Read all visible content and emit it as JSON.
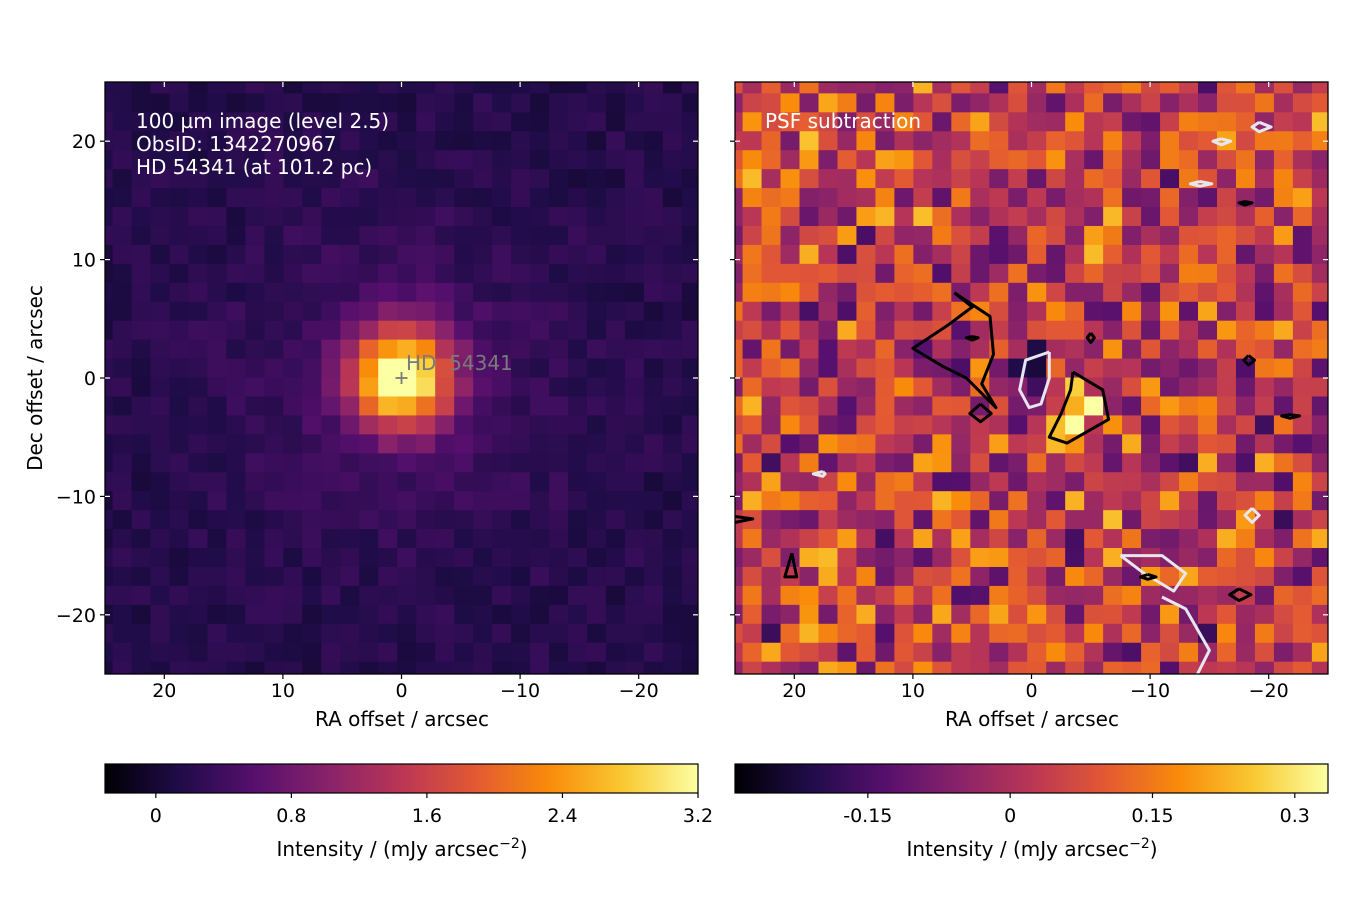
{
  "chart_data": [
    {
      "type": "heatmap",
      "panel": "left",
      "annotations": [
        "100 µm image (level 2.5)",
        "ObsID: 1342270967",
        "HD 54341 (at 101.2 pc)"
      ],
      "source_marker_label": "HD  54341",
      "source_position": [
        0,
        0
      ],
      "xlabel": "RA offset / arcsec",
      "ylabel": "Dec offset / arcsec",
      "xlim": [
        25,
        -25
      ],
      "ylim": [
        -25,
        25
      ],
      "xticks": [
        20,
        10,
        0,
        -10,
        -20
      ],
      "xtick_labels": [
        "20",
        "10",
        "0",
        "−10",
        "−20"
      ],
      "yticks": [
        20,
        10,
        0,
        -10,
        -20
      ],
      "ytick_labels": [
        "20",
        "10",
        "0",
        "−10",
        "−20"
      ],
      "grid": false,
      "pixel_size_arcsec": 1.6,
      "colormap": "inferno",
      "source_peak_intensity": 3.1,
      "source_fwhm_arcsec": 7,
      "background_intensity": 0.18,
      "colorbar": {
        "label": "Intensity / (mJy arcsec",
        "label_exponent": "−2",
        "label_suffix": ")",
        "range": [
          -0.3,
          3.2
        ],
        "ticks": [
          0,
          0.8,
          1.6,
          2.4,
          3.2
        ],
        "tick_labels": [
          "0",
          "0.8",
          "1.6",
          "2.4",
          "3.2"
        ]
      }
    },
    {
      "type": "heatmap",
      "panel": "right",
      "annotations": [
        "PSF subtraction"
      ],
      "xlabel": "RA offset / arcsec",
      "xlim": [
        25,
        -25
      ],
      "ylim": [
        -25,
        25
      ],
      "xticks": [
        20,
        10,
        0,
        -10,
        -20
      ],
      "xtick_labels": [
        "20",
        "10",
        "0",
        "−10",
        "−20"
      ],
      "grid": false,
      "pixel_size_arcsec": 1.6,
      "colormap": "inferno",
      "positive_residual_peak": {
        "x": -3.5,
        "y": -3.5,
        "value": 0.32
      },
      "negative_residual_peak": {
        "x": 0,
        "y": 0,
        "value": -0.26
      },
      "contours": [
        {
          "color": "black",
          "path": [
            [
              6.5,
              7.2
            ],
            [
              3.5,
              5.2
            ],
            [
              3.2,
              2.0
            ],
            [
              4.2,
              -0.5
            ],
            [
              3.0,
              -2.5
            ],
            [
              5.5,
              0
            ],
            [
              7.5,
              1
            ],
            [
              10,
              2.5
            ],
            [
              7,
              4.5
            ],
            [
              5,
              6
            ],
            [
              6.5,
              7.2
            ]
          ]
        },
        {
          "color": "black",
          "path": [
            [
              -3.5,
              0.5
            ],
            [
              -6,
              -1
            ],
            [
              -6.5,
              -3.5
            ],
            [
              -3,
              -5.5
            ],
            [
              -1.5,
              -5
            ],
            [
              -2.5,
              -3
            ],
            [
              -3.3,
              -1
            ],
            [
              -3.5,
              0.5
            ]
          ]
        },
        {
          "color": "white",
          "path": [
            [
              -1.5,
              2.2
            ],
            [
              0.5,
              1.5
            ],
            [
              1,
              -1
            ],
            [
              0.2,
              -2.5
            ],
            [
              -0.8,
              -2.2
            ],
            [
              -1.5,
              0
            ],
            [
              -1.5,
              2.2
            ]
          ]
        },
        {
          "color": "white",
          "path": [
            [
              -7.5,
              -15
            ],
            [
              -11,
              -15
            ],
            [
              -13,
              -16.5
            ],
            [
              -12,
              -18
            ],
            [
              -9.5,
              -16.5
            ],
            [
              -7.5,
              -15
            ]
          ]
        },
        {
          "color": "white",
          "path": [
            [
              -11,
              -18.5
            ],
            [
              -13,
              -19.5
            ],
            [
              -15,
              -23
            ],
            [
              -14,
              -25
            ]
          ]
        },
        {
          "color": "black",
          "path": [
            [
              4.3,
              -2.2
            ],
            [
              5.2,
              -3
            ],
            [
              4.3,
              -3.7
            ],
            [
              3.4,
              -3
            ],
            [
              4.3,
              -2.2
            ]
          ]
        },
        {
          "color": "black",
          "path": [
            [
              20.2,
              -14.8
            ],
            [
              19.8,
              -16.8
            ],
            [
              20.8,
              -16.8
            ],
            [
              20.2,
              -14.8
            ]
          ]
        },
        {
          "color": "black",
          "path": [
            [
              -17.5,
              -17.8
            ],
            [
              -18.5,
              -18.3
            ],
            [
              -17.5,
              -18.8
            ],
            [
              -16.7,
              -18.3
            ],
            [
              -17.5,
              -17.8
            ]
          ]
        },
        {
          "color": "white",
          "path": [
            [
              -18.6,
              -11
            ],
            [
              -19.2,
              -11.6
            ],
            [
              -18.6,
              -12.2
            ],
            [
              -18,
              -11.6
            ],
            [
              -18.6,
              -11
            ]
          ]
        },
        {
          "color": "white",
          "path": [
            [
              17.6,
              -7.9
            ],
            [
              18.4,
              -8.1
            ],
            [
              17.6,
              -8.3
            ],
            [
              17.4,
              -8.1
            ],
            [
              17.6,
              -7.9
            ]
          ]
        },
        {
          "color": "black",
          "path": [
            [
              25,
              -11.7
            ],
            [
              23.5,
              -11.9
            ],
            [
              25,
              -12.2
            ]
          ]
        },
        {
          "color": "white",
          "path": [
            [
              -19.2,
              21.6
            ],
            [
              -20.2,
              21.2
            ],
            [
              -19.2,
              20.8
            ],
            [
              -18.6,
              21.2
            ],
            [
              -19.2,
              21.6
            ]
          ]
        },
        {
          "color": "white",
          "path": [
            [
              -14.2,
              16.6
            ],
            [
              -15.2,
              16.4
            ],
            [
              -14.2,
              16.2
            ],
            [
              -13.4,
              16.4
            ],
            [
              -14.2,
              16.6
            ]
          ]
        },
        {
          "color": "white",
          "path": [
            [
              -16,
              20.2
            ],
            [
              -16.8,
              20.0
            ],
            [
              -16,
              19.7
            ],
            [
              -15.3,
              20.0
            ],
            [
              -16,
              20.2
            ]
          ]
        },
        {
          "color": "black",
          "path": [
            [
              -18,
              14.9
            ],
            [
              -18.6,
              14.8
            ],
            [
              -18,
              14.6
            ],
            [
              -17.5,
              14.8
            ],
            [
              -18,
              14.9
            ]
          ]
        },
        {
          "color": "black",
          "path": [
            [
              -18.3,
              1.9
            ],
            [
              -18.8,
              1.5
            ],
            [
              -18.3,
              1.1
            ],
            [
              -17.9,
              1.5
            ],
            [
              -18.3,
              1.9
            ]
          ]
        },
        {
          "color": "black",
          "path": [
            [
              -21.8,
              -3.1
            ],
            [
              -22.6,
              -3.2
            ],
            [
              -21.8,
              -3.4
            ],
            [
              -21.1,
              -3.2
            ],
            [
              -21.8,
              -3.1
            ]
          ]
        },
        {
          "color": "black",
          "path": [
            [
              -5,
              3.8
            ],
            [
              -5.3,
              3.4
            ],
            [
              -5,
              3.0
            ],
            [
              -4.7,
              3.4
            ],
            [
              -5,
              3.8
            ]
          ]
        },
        {
          "color": "black",
          "path": [
            [
              5,
              3.5
            ],
            [
              5.5,
              3.4
            ],
            [
              5,
              3.2
            ],
            [
              4.5,
              3.4
            ],
            [
              5,
              3.5
            ]
          ]
        },
        {
          "color": "black",
          "path": [
            [
              -9.8,
              -16.6
            ],
            [
              -10.5,
              -16.8
            ],
            [
              -9.8,
              -17
            ],
            [
              -9.2,
              -16.8
            ],
            [
              -9.8,
              -16.6
            ]
          ]
        }
      ],
      "colorbar": {
        "label": "Intensity / (mJy arcsec",
        "label_exponent": "−2",
        "label_suffix": ")",
        "range": [
          -0.29,
          0.335
        ],
        "ticks": [
          -0.15,
          0,
          0.15,
          0.3
        ],
        "tick_labels": [
          "-0.15",
          "0",
          "0.15",
          "0.3"
        ]
      }
    }
  ]
}
